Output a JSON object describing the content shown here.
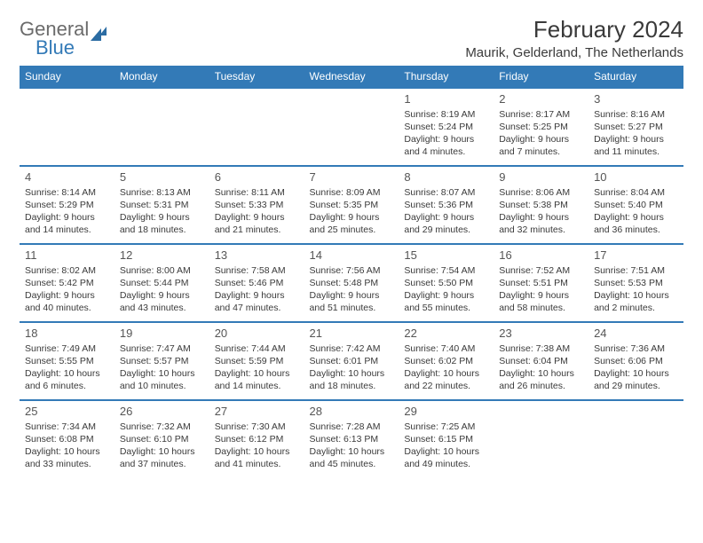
{
  "logo": {
    "text1": "General",
    "text2": "Blue"
  },
  "title": "February 2024",
  "location": "Maurik, Gelderland, The Netherlands",
  "weekdays": [
    "Sunday",
    "Monday",
    "Tuesday",
    "Wednesday",
    "Thursday",
    "Friday",
    "Saturday"
  ],
  "styling": {
    "header_bg": "#337ab7",
    "header_text": "#ffffff",
    "row_border": "#337ab7",
    "body_text": "#3a3a3a",
    "logo_gray": "#6b6b6b",
    "logo_blue": "#337ab7",
    "title_fontsize": 26,
    "location_fontsize": 15,
    "th_fontsize": 12,
    "cell_fontsize": 10.5,
    "daynum_fontsize": 13
  },
  "weeks": [
    [
      null,
      null,
      null,
      null,
      {
        "n": "1",
        "sr": "Sunrise: 8:19 AM",
        "ss": "Sunset: 5:24 PM",
        "d1": "Daylight: 9 hours",
        "d2": "and 4 minutes."
      },
      {
        "n": "2",
        "sr": "Sunrise: 8:17 AM",
        "ss": "Sunset: 5:25 PM",
        "d1": "Daylight: 9 hours",
        "d2": "and 7 minutes."
      },
      {
        "n": "3",
        "sr": "Sunrise: 8:16 AM",
        "ss": "Sunset: 5:27 PM",
        "d1": "Daylight: 9 hours",
        "d2": "and 11 minutes."
      }
    ],
    [
      {
        "n": "4",
        "sr": "Sunrise: 8:14 AM",
        "ss": "Sunset: 5:29 PM",
        "d1": "Daylight: 9 hours",
        "d2": "and 14 minutes."
      },
      {
        "n": "5",
        "sr": "Sunrise: 8:13 AM",
        "ss": "Sunset: 5:31 PM",
        "d1": "Daylight: 9 hours",
        "d2": "and 18 minutes."
      },
      {
        "n": "6",
        "sr": "Sunrise: 8:11 AM",
        "ss": "Sunset: 5:33 PM",
        "d1": "Daylight: 9 hours",
        "d2": "and 21 minutes."
      },
      {
        "n": "7",
        "sr": "Sunrise: 8:09 AM",
        "ss": "Sunset: 5:35 PM",
        "d1": "Daylight: 9 hours",
        "d2": "and 25 minutes."
      },
      {
        "n": "8",
        "sr": "Sunrise: 8:07 AM",
        "ss": "Sunset: 5:36 PM",
        "d1": "Daylight: 9 hours",
        "d2": "and 29 minutes."
      },
      {
        "n": "9",
        "sr": "Sunrise: 8:06 AM",
        "ss": "Sunset: 5:38 PM",
        "d1": "Daylight: 9 hours",
        "d2": "and 32 minutes."
      },
      {
        "n": "10",
        "sr": "Sunrise: 8:04 AM",
        "ss": "Sunset: 5:40 PM",
        "d1": "Daylight: 9 hours",
        "d2": "and 36 minutes."
      }
    ],
    [
      {
        "n": "11",
        "sr": "Sunrise: 8:02 AM",
        "ss": "Sunset: 5:42 PM",
        "d1": "Daylight: 9 hours",
        "d2": "and 40 minutes."
      },
      {
        "n": "12",
        "sr": "Sunrise: 8:00 AM",
        "ss": "Sunset: 5:44 PM",
        "d1": "Daylight: 9 hours",
        "d2": "and 43 minutes."
      },
      {
        "n": "13",
        "sr": "Sunrise: 7:58 AM",
        "ss": "Sunset: 5:46 PM",
        "d1": "Daylight: 9 hours",
        "d2": "and 47 minutes."
      },
      {
        "n": "14",
        "sr": "Sunrise: 7:56 AM",
        "ss": "Sunset: 5:48 PM",
        "d1": "Daylight: 9 hours",
        "d2": "and 51 minutes."
      },
      {
        "n": "15",
        "sr": "Sunrise: 7:54 AM",
        "ss": "Sunset: 5:50 PM",
        "d1": "Daylight: 9 hours",
        "d2": "and 55 minutes."
      },
      {
        "n": "16",
        "sr": "Sunrise: 7:52 AM",
        "ss": "Sunset: 5:51 PM",
        "d1": "Daylight: 9 hours",
        "d2": "and 58 minutes."
      },
      {
        "n": "17",
        "sr": "Sunrise: 7:51 AM",
        "ss": "Sunset: 5:53 PM",
        "d1": "Daylight: 10 hours",
        "d2": "and 2 minutes."
      }
    ],
    [
      {
        "n": "18",
        "sr": "Sunrise: 7:49 AM",
        "ss": "Sunset: 5:55 PM",
        "d1": "Daylight: 10 hours",
        "d2": "and 6 minutes."
      },
      {
        "n": "19",
        "sr": "Sunrise: 7:47 AM",
        "ss": "Sunset: 5:57 PM",
        "d1": "Daylight: 10 hours",
        "d2": "and 10 minutes."
      },
      {
        "n": "20",
        "sr": "Sunrise: 7:44 AM",
        "ss": "Sunset: 5:59 PM",
        "d1": "Daylight: 10 hours",
        "d2": "and 14 minutes."
      },
      {
        "n": "21",
        "sr": "Sunrise: 7:42 AM",
        "ss": "Sunset: 6:01 PM",
        "d1": "Daylight: 10 hours",
        "d2": "and 18 minutes."
      },
      {
        "n": "22",
        "sr": "Sunrise: 7:40 AM",
        "ss": "Sunset: 6:02 PM",
        "d1": "Daylight: 10 hours",
        "d2": "and 22 minutes."
      },
      {
        "n": "23",
        "sr": "Sunrise: 7:38 AM",
        "ss": "Sunset: 6:04 PM",
        "d1": "Daylight: 10 hours",
        "d2": "and 26 minutes."
      },
      {
        "n": "24",
        "sr": "Sunrise: 7:36 AM",
        "ss": "Sunset: 6:06 PM",
        "d1": "Daylight: 10 hours",
        "d2": "and 29 minutes."
      }
    ],
    [
      {
        "n": "25",
        "sr": "Sunrise: 7:34 AM",
        "ss": "Sunset: 6:08 PM",
        "d1": "Daylight: 10 hours",
        "d2": "and 33 minutes."
      },
      {
        "n": "26",
        "sr": "Sunrise: 7:32 AM",
        "ss": "Sunset: 6:10 PM",
        "d1": "Daylight: 10 hours",
        "d2": "and 37 minutes."
      },
      {
        "n": "27",
        "sr": "Sunrise: 7:30 AM",
        "ss": "Sunset: 6:12 PM",
        "d1": "Daylight: 10 hours",
        "d2": "and 41 minutes."
      },
      {
        "n": "28",
        "sr": "Sunrise: 7:28 AM",
        "ss": "Sunset: 6:13 PM",
        "d1": "Daylight: 10 hours",
        "d2": "and 45 minutes."
      },
      {
        "n": "29",
        "sr": "Sunrise: 7:25 AM",
        "ss": "Sunset: 6:15 PM",
        "d1": "Daylight: 10 hours",
        "d2": "and 49 minutes."
      },
      null,
      null
    ]
  ]
}
